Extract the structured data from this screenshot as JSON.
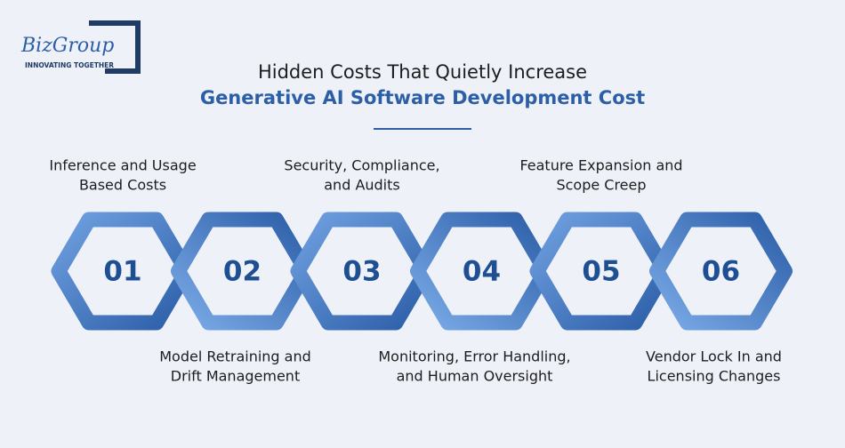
{
  "logo": {
    "name": "BizGroup",
    "tagline": "INNOVATING TOGETHER"
  },
  "title": {
    "line1": "Hidden Costs That Quietly Increase",
    "line2": "Generative AI Software Development Cost"
  },
  "items": [
    {
      "number": "01",
      "label_lines": [
        "Inference and Usage",
        "Based Costs"
      ]
    },
    {
      "number": "02",
      "label_lines": [
        "Model Retraining and",
        "Drift Management"
      ]
    },
    {
      "number": "03",
      "label_lines": [
        "Security, Compliance,",
        "and Audits"
      ]
    },
    {
      "number": "04",
      "label_lines": [
        "Monitoring, Error Handling,",
        "and Human Oversight"
      ]
    },
    {
      "number": "05",
      "label_lines": [
        "Feature Expansion and",
        "Scope Creep"
      ]
    },
    {
      "number": "06",
      "label_lines": [
        "Vendor Lock In and",
        "Licensing Changes"
      ]
    }
  ]
}
